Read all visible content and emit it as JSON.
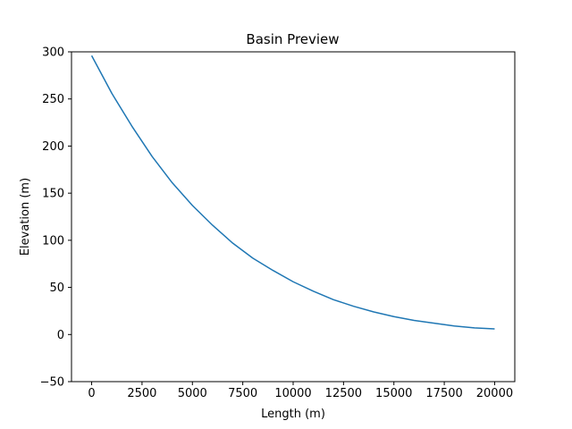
{
  "chart_data": {
    "type": "line",
    "title": "Basin Preview",
    "xlabel": "Length (m)",
    "ylabel": "Elevation (m)",
    "xlim": [
      -1000,
      21000
    ],
    "ylim": [
      -50,
      300
    ],
    "grid": false,
    "x_ticks": [
      0,
      2500,
      5000,
      7500,
      10000,
      12500,
      15000,
      17500,
      20000
    ],
    "y_ticks": [
      -50,
      0,
      50,
      100,
      150,
      200,
      250,
      300
    ],
    "series": [
      {
        "color": "#1f77b4",
        "x": [
          0,
          1000,
          2000,
          3000,
          4000,
          5000,
          6000,
          7000,
          8000,
          9000,
          10000,
          11000,
          12000,
          13000,
          14000,
          15000,
          16000,
          17000,
          18000,
          19000,
          20000
        ],
        "values": [
          296,
          256,
          221,
          189,
          161,
          137,
          116,
          97,
          81,
          68,
          56,
          46,
          37,
          30,
          24,
          19,
          15,
          12,
          9,
          7,
          6
        ]
      }
    ]
  }
}
